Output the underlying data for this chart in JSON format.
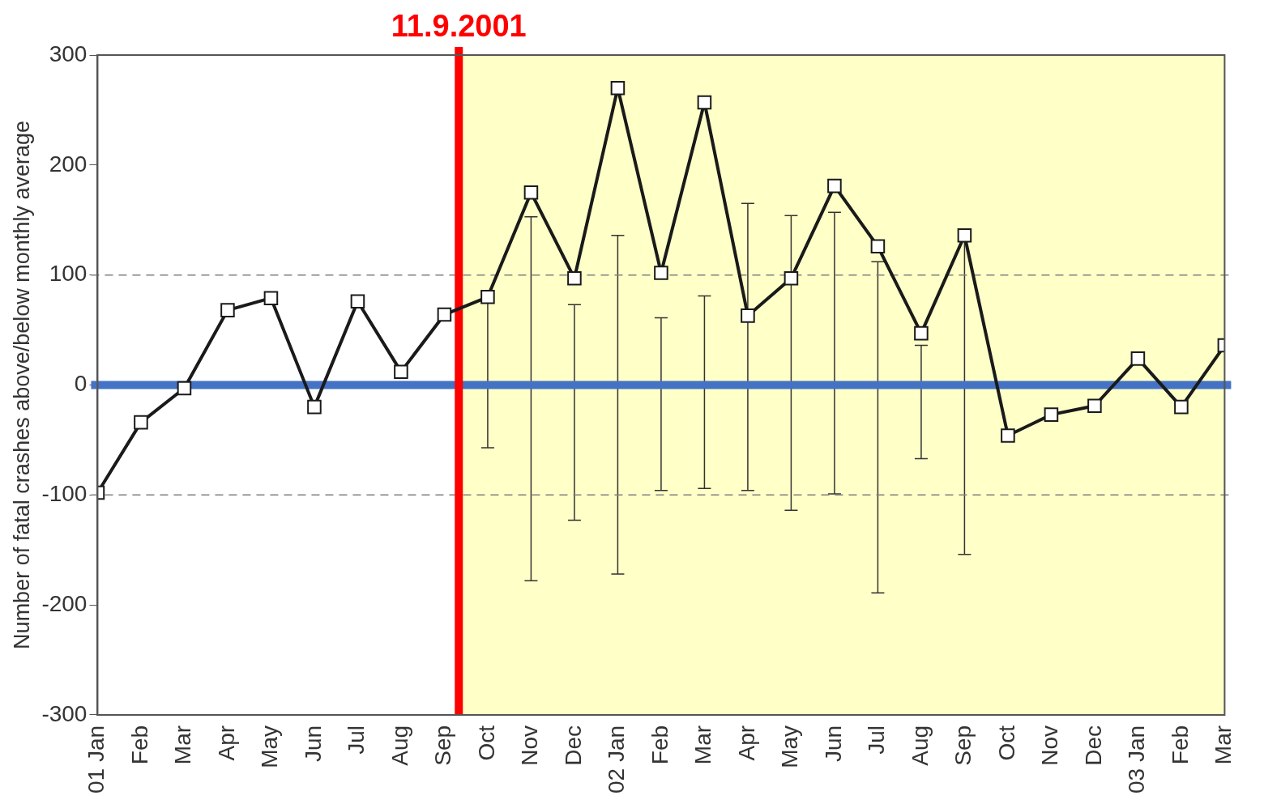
{
  "chart_data": {
    "type": "line",
    "x": [
      "2001-01",
      "2001-02",
      "2001-03",
      "2001-04",
      "2001-05",
      "2001-06",
      "2001-07",
      "2001-08",
      "2001-09",
      "2001-10",
      "2001-11",
      "2001-12",
      "2002-01",
      "2002-02",
      "2002-03",
      "2002-04",
      "2002-05",
      "2002-06",
      "2002-07",
      "2002-08",
      "2002-09",
      "2002-10",
      "2002-11",
      "2002-12",
      "2003-01",
      "2003-02",
      "2003-03"
    ],
    "values": [
      -98,
      -34,
      -3,
      68,
      79,
      -20,
      76,
      12,
      64,
      80,
      175,
      97,
      270,
      102,
      257,
      63,
      97,
      181,
      126,
      47,
      136,
      -46,
      -27,
      -19,
      24,
      -20,
      36
    ],
    "errors": [
      null,
      null,
      null,
      null,
      null,
      null,
      null,
      null,
      null,
      [
        -57,
        75
      ],
      [
        -178,
        153
      ],
      [
        -123,
        73
      ],
      [
        -172,
        136
      ],
      [
        -96,
        61
      ],
      [
        -94,
        81
      ],
      [
        -96,
        165
      ],
      [
        -114,
        154
      ],
      [
        -99,
        157
      ],
      [
        -189,
        112
      ],
      [
        -67,
        36
      ],
      [
        -154,
        136
      ],
      null,
      null,
      null,
      null,
      null,
      null
    ],
    "color": "#1a1a1a",
    "marker": "square",
    "line_style": "solid",
    "ylabel": "Number of fatal crashes above/below monthly average",
    "ylim": [
      -300,
      300
    ],
    "yticks": [
      -300,
      -200,
      -100,
      0,
      100,
      200,
      300
    ],
    "xlim": [
      "2001-01",
      "2003-03"
    ],
    "xticks": [
      {
        "value": "2001-01",
        "label": "01 Jan"
      },
      {
        "value": "2001-02",
        "label": "Feb"
      },
      {
        "value": "2001-03",
        "label": "Mar"
      },
      {
        "value": "2001-04",
        "label": "Apr"
      },
      {
        "value": "2001-05",
        "label": "May"
      },
      {
        "value": "2001-06",
        "label": "Jun"
      },
      {
        "value": "2001-07",
        "label": "Jul"
      },
      {
        "value": "2001-08",
        "label": "Aug"
      },
      {
        "value": "2001-09",
        "label": "Sep"
      },
      {
        "value": "2001-10",
        "label": "Oct"
      },
      {
        "value": "2001-11",
        "label": "Nov"
      },
      {
        "value": "2001-12",
        "label": "Dec"
      },
      {
        "value": "2002-01",
        "label": "02 Jan"
      },
      {
        "value": "2002-02",
        "label": "Feb"
      },
      {
        "value": "2002-03",
        "label": "Mar"
      },
      {
        "value": "2002-04",
        "label": "Apr"
      },
      {
        "value": "2002-05",
        "label": "May"
      },
      {
        "value": "2002-06",
        "label": "Jun"
      },
      {
        "value": "2002-07",
        "label": "Jul"
      },
      {
        "value": "2002-08",
        "label": "Aug"
      },
      {
        "value": "2002-09",
        "label": "Sep"
      },
      {
        "value": "2002-10",
        "label": "Oct"
      },
      {
        "value": "2002-11",
        "label": "Nov"
      },
      {
        "value": "2002-12",
        "label": "Dec"
      },
      {
        "value": "2003-01",
        "label": "03 Jan"
      },
      {
        "value": "2003-02",
        "label": "Feb"
      },
      {
        "value": "2003-03",
        "label": "Mar"
      }
    ],
    "bands": [
      {
        "axis": "x",
        "from": "2001-09-11",
        "to": "2003-03",
        "color": "#ffffc8"
      }
    ],
    "ref_lines": [
      {
        "axis": "y",
        "value": 100,
        "color": "#808080",
        "line_style": "dashed"
      },
      {
        "axis": "y",
        "value": -100,
        "color": "#808080",
        "line_style": "dashed"
      },
      {
        "axis": "y",
        "value": 0,
        "color": "#4472c4",
        "line_style": "solid"
      },
      {
        "axis": "x",
        "value": "2001-09-11",
        "label": "11.9.2001",
        "color": "#ff0000",
        "line_style": "solid"
      }
    ],
    "grid": false,
    "legend": false
  }
}
